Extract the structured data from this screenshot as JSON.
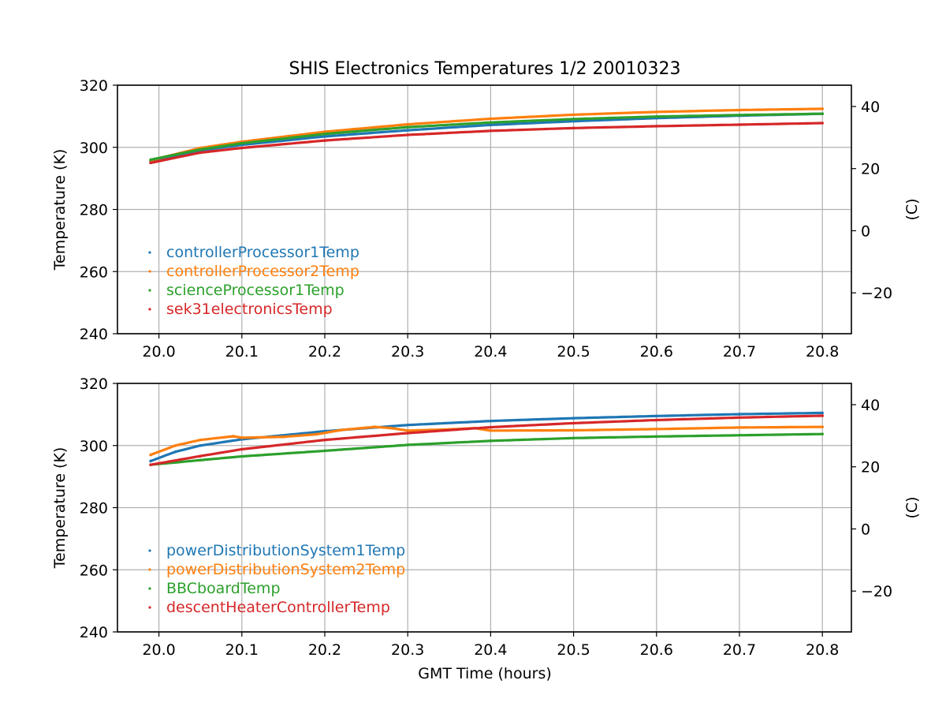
{
  "title": "SHIS Electronics Temperatures 1/2 20010323",
  "xlabel": "GMT Time (hours)",
  "colors": {
    "blue": "#1f77b4",
    "orange": "#ff7f0e",
    "green": "#2ca02c",
    "red": "#d62728",
    "grid": "#b0b0b0"
  },
  "chart_data": [
    {
      "type": "scatter",
      "ylabel": "Temperature (K)",
      "ylabel_right": "(C)",
      "xlim": [
        19.95,
        20.835
      ],
      "ylim": [
        240,
        320
      ],
      "xticks": [
        "20.0",
        "20.1",
        "20.2",
        "20.3",
        "20.4",
        "20.5",
        "20.6",
        "20.7",
        "20.8"
      ],
      "yticks": [
        "240",
        "260",
        "280",
        "300",
        "320"
      ],
      "yticks_right": [
        "−20",
        "0",
        "20",
        "40"
      ],
      "grid": true,
      "legend_placement": "lower-left",
      "series": [
        {
          "name": "controllerProcessor1Temp",
          "color": "#1f77b4",
          "x": [
            19.99,
            20.05,
            20.1,
            20.2,
            20.3,
            20.4,
            20.5,
            20.6,
            20.7,
            20.8
          ],
          "y": [
            295.5,
            299.0,
            300.8,
            303.5,
            305.5,
            307.2,
            308.4,
            309.4,
            310.2,
            310.8
          ]
        },
        {
          "name": "controllerProcessor2Temp",
          "color": "#ff7f0e",
          "x": [
            19.99,
            20.05,
            20.1,
            20.2,
            20.3,
            20.4,
            20.5,
            20.6,
            20.7,
            20.8
          ],
          "y": [
            295.8,
            299.8,
            301.8,
            305.0,
            307.4,
            309.2,
            310.5,
            311.4,
            312.0,
            312.4
          ]
        },
        {
          "name": "scienceProcessor1Temp",
          "color": "#2ca02c",
          "x": [
            19.99,
            20.05,
            20.1,
            20.2,
            20.3,
            20.4,
            20.5,
            20.6,
            20.7,
            20.8
          ],
          "y": [
            296.0,
            299.3,
            301.3,
            304.3,
            306.5,
            308.0,
            309.1,
            309.9,
            310.4,
            310.8
          ]
        },
        {
          "name": "sek31electronicsTemp",
          "color": "#d62728",
          "x": [
            19.99,
            20.05,
            20.1,
            20.2,
            20.3,
            20.4,
            20.5,
            20.6,
            20.7,
            20.8
          ],
          "y": [
            295.0,
            298.3,
            299.8,
            302.2,
            304.0,
            305.3,
            306.2,
            306.8,
            307.3,
            307.8
          ]
        }
      ]
    },
    {
      "type": "scatter",
      "ylabel": "Temperature (K)",
      "ylabel_right": "(C)",
      "xlim": [
        19.95,
        20.835
      ],
      "ylim": [
        240,
        320
      ],
      "xticks": [
        "20.0",
        "20.1",
        "20.2",
        "20.3",
        "20.4",
        "20.5",
        "20.6",
        "20.7",
        "20.8"
      ],
      "yticks": [
        "240",
        "260",
        "280",
        "300",
        "320"
      ],
      "yticks_right": [
        "−20",
        "0",
        "20",
        "40"
      ],
      "grid": true,
      "legend_placement": "lower-left",
      "series": [
        {
          "name": "powerDistributionSystem1Temp",
          "color": "#1f77b4",
          "x": [
            19.99,
            20.02,
            20.05,
            20.1,
            20.2,
            20.3,
            20.4,
            20.5,
            20.6,
            20.7,
            20.8
          ],
          "y": [
            295.0,
            298.0,
            300.0,
            302.0,
            304.6,
            306.6,
            307.9,
            308.8,
            309.5,
            310.1,
            310.5
          ]
        },
        {
          "name": "powerDistributionSystem2Temp",
          "color": "#ff7f0e",
          "x": [
            19.99,
            20.02,
            20.05,
            20.09,
            20.1,
            20.15,
            20.19,
            20.22,
            20.26,
            20.28,
            20.3,
            20.35,
            20.38,
            20.4,
            20.5,
            20.6,
            20.7,
            20.8
          ],
          "y": [
            297.0,
            300.0,
            301.8,
            303.0,
            302.5,
            302.8,
            303.6,
            305.0,
            306.0,
            305.6,
            304.8,
            305.2,
            305.6,
            304.8,
            304.9,
            305.3,
            305.8,
            306.0
          ]
        },
        {
          "name": "BBCboardTemp",
          "color": "#2ca02c",
          "x": [
            19.99,
            20.05,
            20.1,
            20.2,
            20.3,
            20.4,
            20.5,
            20.6,
            20.7,
            20.8
          ],
          "y": [
            293.8,
            295.3,
            296.5,
            298.3,
            300.2,
            301.5,
            302.4,
            302.9,
            303.3,
            303.7
          ]
        },
        {
          "name": "descentHeaterControllerTemp",
          "color": "#d62728",
          "x": [
            19.99,
            20.05,
            20.1,
            20.2,
            20.3,
            20.4,
            20.5,
            20.6,
            20.7,
            20.8
          ],
          "y": [
            293.8,
            296.6,
            298.8,
            301.8,
            304.0,
            305.9,
            307.2,
            308.2,
            309.0,
            309.6
          ]
        }
      ]
    }
  ]
}
